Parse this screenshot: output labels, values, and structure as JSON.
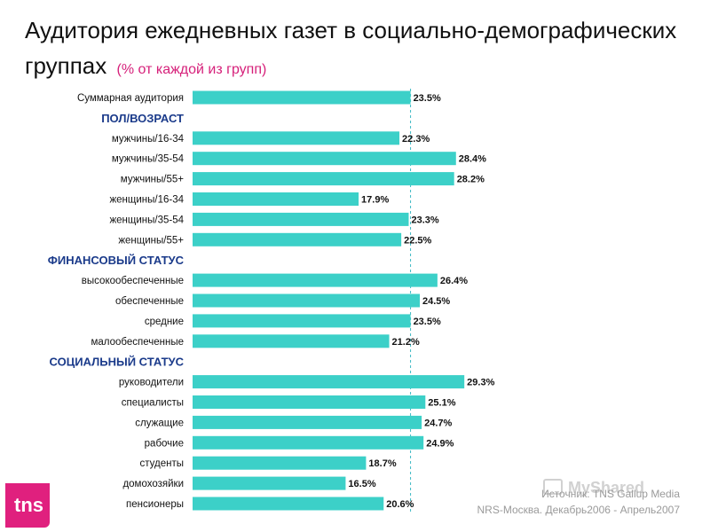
{
  "header": {
    "title": "Аудитория ежедневных газет в социально-демографических группах",
    "subtitle": "(% от каждой из групп)"
  },
  "chart_data": {
    "type": "bar",
    "orientation": "horizontal",
    "title": "Аудитория ежедневных газет в социально-демографических группах",
    "subtitle": "(% от каждой из групп)",
    "value_format": "percent",
    "reference_value": 23.5,
    "bar_color": "#3cd0c8",
    "section_color": "#1a3a8a",
    "rows": [
      {
        "type": "bar",
        "label": "Суммарная аудитория",
        "value": 23.5,
        "value_label": "23.5%"
      },
      {
        "type": "section",
        "label": "ПОЛ/ВОЗРАСТ"
      },
      {
        "type": "bar",
        "label": "мужчины/16-34",
        "value": 22.3,
        "value_label": "22.3%"
      },
      {
        "type": "bar",
        "label": "мужчины/35-54",
        "value": 28.4,
        "value_label": "28.4%"
      },
      {
        "type": "bar",
        "label": "мужчины/55+",
        "value": 28.2,
        "value_label": "28.2%"
      },
      {
        "type": "bar",
        "label": "женщины/16-34",
        "value": 17.9,
        "value_label": "17.9%"
      },
      {
        "type": "bar",
        "label": "женщины/35-54",
        "value": 23.3,
        "value_label": "23.3%"
      },
      {
        "type": "bar",
        "label": "женщины/55+",
        "value": 22.5,
        "value_label": "22.5%"
      },
      {
        "type": "section",
        "label": "ФИНАНСОВЫЙ СТАТУС"
      },
      {
        "type": "bar",
        "label": "высокообеспеченные",
        "value": 26.4,
        "value_label": "26.4%"
      },
      {
        "type": "bar",
        "label": "обеспеченные",
        "value": 24.5,
        "value_label": "24.5%"
      },
      {
        "type": "bar",
        "label": "средние",
        "value": 23.5,
        "value_label": "23.5%"
      },
      {
        "type": "bar",
        "label": "малообеспеченные",
        "value": 21.2,
        "value_label": "21.2%"
      },
      {
        "type": "section",
        "label": "СОЦИАЛЬНЫЙ СТАТУС"
      },
      {
        "type": "bar",
        "label": "руководители",
        "value": 29.3,
        "value_label": "29.3%"
      },
      {
        "type": "bar",
        "label": "специалисты",
        "value": 25.1,
        "value_label": "25.1%"
      },
      {
        "type": "bar",
        "label": "служащие",
        "value": 24.7,
        "value_label": "24.7%"
      },
      {
        "type": "bar",
        "label": "рабочие",
        "value": 24.9,
        "value_label": "24.9%"
      },
      {
        "type": "bar",
        "label": "студенты",
        "value": 18.7,
        "value_label": "18.7%"
      },
      {
        "type": "bar",
        "label": "домохозяйки",
        "value": 16.5,
        "value_label": "16.5%"
      },
      {
        "type": "bar",
        "label": "пенсионеры",
        "value": 20.6,
        "value_label": "20.6%"
      }
    ]
  },
  "footer": {
    "logo_text": "tns",
    "source_line1": "Источник: TNS Gallup Media",
    "source_line2": "NRS-Москва. Декабрь2006 - Апрель2007",
    "watermark": "MyShared"
  }
}
